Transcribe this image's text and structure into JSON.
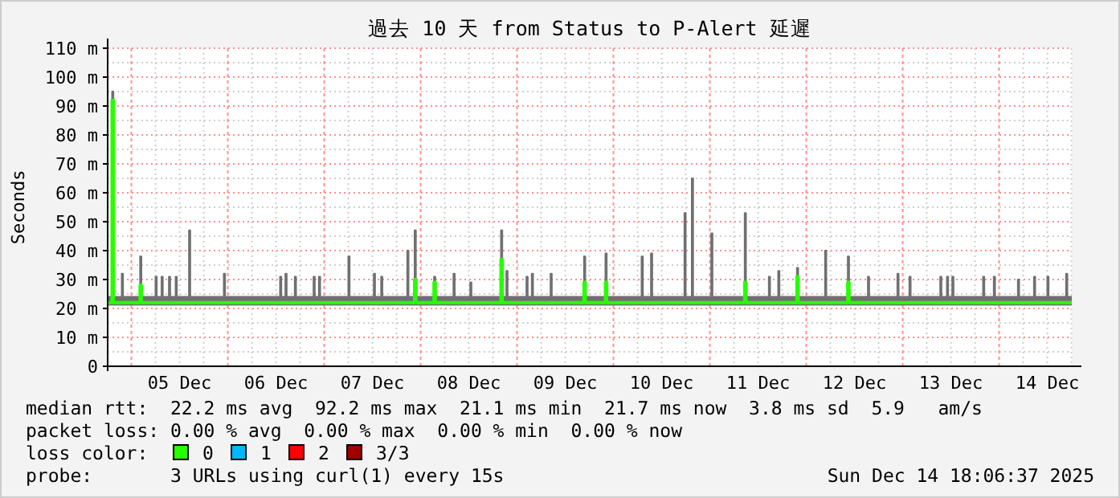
{
  "chart_data": {
    "type": "step",
    "title": "過去 10 天 from Status to P-Alert 延遲",
    "ylabel": "Seconds",
    "xlim": [
      "2025-12-04T18:06",
      "2025-12-14T18:06"
    ],
    "xticks": [
      {
        "value": "2025-12-05T12:00",
        "label": "05 Dec"
      },
      {
        "value": "2025-12-06T12:00",
        "label": "06 Dec"
      },
      {
        "value": "2025-12-07T12:00",
        "label": "07 Dec"
      },
      {
        "value": "2025-12-08T12:00",
        "label": "08 Dec"
      },
      {
        "value": "2025-12-09T12:00",
        "label": "09 Dec"
      },
      {
        "value": "2025-12-10T12:00",
        "label": "10 Dec"
      },
      {
        "value": "2025-12-11T12:00",
        "label": "11 Dec"
      },
      {
        "value": "2025-12-12T12:00",
        "label": "12 Dec"
      },
      {
        "value": "2025-12-13T12:00",
        "label": "13 Dec"
      },
      {
        "value": "2025-12-14T12:00",
        "label": "14 Dec"
      }
    ],
    "ylim": [
      0,
      110
    ],
    "yticks": [
      0,
      {
        "value": 10,
        "label": "10 m"
      },
      {
        "value": 20,
        "label": "20 m"
      },
      {
        "value": 30,
        "label": "30 m"
      },
      {
        "value": 40,
        "label": "40 m"
      },
      {
        "value": 50,
        "label": "50 m"
      },
      {
        "value": 60,
        "label": "60 m"
      },
      {
        "value": 70,
        "label": "70 m"
      },
      {
        "value": 80,
        "label": "80 m"
      },
      {
        "value": 90,
        "label": "90 m"
      },
      {
        "value": 100,
        "label": "100 m"
      },
      {
        "value": 110,
        "label": "110 m"
      }
    ],
    "grid": true,
    "bands": [
      {
        "axis": "y",
        "from": 21,
        "to": 24,
        "color": "#707070"
      }
    ],
    "series": [
      {
        "color": "#707070",
        "x": [
          "2025-12-04T18:06",
          "2025-12-04T19:12",
          "2025-12-04T19:32",
          "2025-12-04T21:36",
          "2025-12-04T21:56",
          "2025-12-05T02:10",
          "2025-12-05T02:30",
          "2025-12-05T06:00",
          "2025-12-05T06:20",
          "2025-12-05T07:30",
          "2025-12-05T07:50",
          "2025-12-05T09:20",
          "2025-12-05T09:40",
          "2025-12-05T11:00",
          "2025-12-05T11:20",
          "2025-12-05T14:20",
          "2025-12-05T14:40",
          "2025-12-05T23:00",
          "2025-12-05T23:20",
          "2025-12-06T13:00",
          "2025-12-06T13:20",
          "2025-12-06T14:20",
          "2025-12-06T14:40",
          "2025-12-06T16:40",
          "2025-12-06T17:00",
          "2025-12-06T21:20",
          "2025-12-06T21:40",
          "2025-12-06T22:40",
          "2025-12-06T23:00",
          "2025-12-07T06:00",
          "2025-12-07T06:20",
          "2025-12-07T12:20",
          "2025-12-07T12:40",
          "2025-12-07T14:10",
          "2025-12-07T14:30",
          "2025-12-07T20:40",
          "2025-12-07T21:00",
          "2025-12-07T22:30",
          "2025-12-07T22:50",
          "2025-12-08T03:20",
          "2025-12-08T03:40",
          "2025-12-08T08:10",
          "2025-12-08T08:30",
          "2025-12-08T12:20",
          "2025-12-08T12:40",
          "2025-12-08T20:00",
          "2025-12-08T20:20",
          "2025-12-08T21:20",
          "2025-12-08T21:40",
          "2025-12-09T02:20",
          "2025-12-09T02:40",
          "2025-12-09T03:40",
          "2025-12-09T04:00",
          "2025-12-09T08:20",
          "2025-12-09T08:40",
          "2025-12-09T16:40",
          "2025-12-09T17:00",
          "2025-12-09T22:00",
          "2025-12-09T22:20",
          "2025-12-10T07:00",
          "2025-12-10T07:20",
          "2025-12-10T09:20",
          "2025-12-10T09:40",
          "2025-12-10T17:40",
          "2025-12-10T18:00",
          "2025-12-10T19:30",
          "2025-12-10T19:50",
          "2025-12-11T00:20",
          "2025-12-11T00:40",
          "2025-12-11T08:40",
          "2025-12-11T09:00",
          "2025-12-11T14:40",
          "2025-12-11T15:00",
          "2025-12-11T17:00",
          "2025-12-11T17:20",
          "2025-12-11T21:40",
          "2025-12-11T22:00",
          "2025-12-12T04:40",
          "2025-12-12T05:00",
          "2025-12-12T10:20",
          "2025-12-12T10:40",
          "2025-12-12T15:20",
          "2025-12-12T15:40",
          "2025-12-12T22:40",
          "2025-12-12T23:00",
          "2025-12-13T01:40",
          "2025-12-13T02:00",
          "2025-12-13T09:20",
          "2025-12-13T09:40",
          "2025-12-13T11:00",
          "2025-12-13T11:20",
          "2025-12-13T12:20",
          "2025-12-13T12:40",
          "2025-12-13T20:00",
          "2025-12-13T20:20",
          "2025-12-13T22:40",
          "2025-12-13T23:00",
          "2025-12-14T04:40",
          "2025-12-14T05:00",
          "2025-12-14T08:40",
          "2025-12-14T09:00",
          "2025-12-14T12:00",
          "2025-12-14T12:20",
          "2025-12-14T16:40",
          "2025-12-14T17:00",
          "2025-12-14T18:06"
        ],
        "values": [
          24,
          95,
          24,
          32,
          24,
          38,
          24,
          31,
          24,
          31,
          24,
          31,
          24,
          31,
          24,
          47,
          24,
          32,
          24,
          31,
          24,
          32,
          24,
          31,
          24,
          31,
          24,
          31,
          24,
          38,
          24,
          32,
          24,
          31,
          24,
          40,
          24,
          47,
          24,
          31,
          24,
          32,
          24,
          29,
          24,
          47,
          24,
          33,
          24,
          31,
          24,
          32,
          24,
          32,
          24,
          38,
          24,
          39,
          24,
          38,
          24,
          39,
          24,
          53,
          24,
          65,
          24,
          46,
          24,
          53,
          24,
          31,
          24,
          33,
          24,
          34,
          24,
          40,
          24,
          38,
          24,
          31,
          24,
          32,
          24,
          31,
          24,
          31,
          24,
          31,
          24,
          31,
          24,
          31,
          24,
          31,
          24,
          30,
          24,
          31,
          24,
          31,
          24,
          32,
          24,
          24
        ]
      },
      {
        "color": "#26ff00",
        "x": [
          "2025-12-04T18:06",
          "2025-12-04T19:12",
          "2025-12-04T19:32",
          "2025-12-05T02:10",
          "2025-12-05T02:30",
          "2025-12-07T22:30",
          "2025-12-07T22:50",
          "2025-12-08T03:20",
          "2025-12-08T03:40",
          "2025-12-08T20:00",
          "2025-12-08T20:20",
          "2025-12-09T16:40",
          "2025-12-09T17:00",
          "2025-12-09T22:00",
          "2025-12-09T22:20",
          "2025-12-11T08:40",
          "2025-12-11T09:00",
          "2025-12-11T21:40",
          "2025-12-11T22:00",
          "2025-12-12T10:20",
          "2025-12-12T10:40",
          "2025-12-14T18:06"
        ],
        "values": [
          22,
          92,
          22,
          28,
          22,
          30,
          22,
          29,
          22,
          37,
          22,
          29,
          22,
          29,
          22,
          29,
          22,
          31,
          22,
          29,
          22,
          22
        ]
      }
    ],
    "annotations": [
      "median rtt:  22.2 ms avg  92.2 ms max  21.1 ms min  21.7 ms now  3.8 ms sd  5.9   am/s",
      "packet loss: 0.00 % avg  0.00 % max  0.00 % min  0.00 % now",
      "loss color:",
      "0",
      "1",
      "2",
      "3/3",
      "probe:       3 URLs using curl(1) every 15s",
      "Sun Dec 14 18:06:37 2025"
    ]
  }
}
